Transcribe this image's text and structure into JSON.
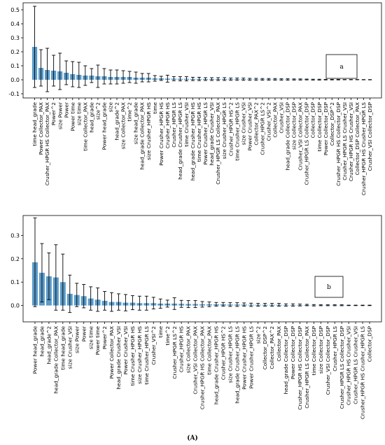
{
  "chart_data": [
    {
      "type": "bar",
      "annotation": "a",
      "color": "#5a9ac8",
      "error_color": "#000000",
      "ylim": [
        -0.13,
        0.55
      ],
      "yticks": [
        -0.1,
        {
          "value": 0,
          "label": "0.0"
        },
        0.1,
        0.2,
        0.3,
        0.4,
        0.5
      ],
      "categories": [
        "time head_grade",
        "Power Collector_PAX",
        "Crusher_HPGR HS Collector_PAX",
        "Power^2",
        "size Power",
        "Power",
        "Power time",
        "size time",
        "time Collector_PAX",
        "head_grade",
        "size^2",
        "Power head_grade",
        "size",
        "head_grade^2",
        "size Collector_PAX",
        "time^2",
        "size head_grade",
        "head_grade Collector_PAX",
        "size Crusher_HPGR HS",
        "time",
        "Power Crusher_HPGR HS",
        "Crusher_HPGR HS",
        "Crusher_HPGR LS",
        "head_grade Crusher_HPGR LS",
        "time Crusher_VSI",
        "head_grade Crusher_HPGR HS",
        "time Crusher_HPGR HS",
        "Power Crusher_HPGR LS",
        "head_grade Crusher_VSI",
        "Crusher_HPGR LS Collector_PAX",
        "size Crusher_HPGR LS",
        "Crusher_HPGR HS^2",
        "time Crusher_HPGR LS",
        "size Crusher_VSI",
        "Power Crusher_VSI",
        "Collector_PAX^2",
        "Crusher_HPGR LS^2",
        "Crusher_VSI^2",
        "Collector_PAX",
        "Crusher_VSI",
        "head_grade Collector_DSP",
        "size Collector_DSP",
        "Crusher_VSI Collector_PAX",
        "Crusher_HPGR LS Collector_DSP",
        "Collector_DSP",
        "time Collector_DSP",
        "Power Collector_DSP",
        "Collector_DSP^2",
        "Crusher_HPGR HS Collector_DSP",
        "Crusher_HPGR LS Crusher_VSI",
        "Crusher_HPGR HS Crusher_VSI",
        "Collector_DSP Collector_PAX",
        "Crusher_HPGR HS Crusher_HPGR LS",
        "Crusher_VSI Collector_DSP"
      ],
      "values": [
        0.235,
        0.085,
        0.07,
        0.065,
        0.06,
        0.05,
        0.04,
        0.035,
        0.03,
        0.03,
        0.025,
        0.025,
        0.02,
        0.02,
        0.02,
        0.02,
        0.015,
        0.015,
        0.015,
        0.01,
        0.01,
        0.008,
        0.008,
        0.007,
        0.007,
        0.006,
        0.006,
        0.005,
        0.005,
        0.005,
        0.005,
        0.004,
        0.004,
        0.004,
        0.003,
        0.003,
        0.003,
        0.003,
        0.003,
        0.002,
        0.002,
        0.002,
        0.002,
        0.002,
        0.001,
        0.001,
        0.001,
        0.001,
        0.001,
        0.001,
        0.001,
        0.001,
        0.0005,
        0.0005
      ],
      "errors": [
        0.29,
        0.13,
        0.155,
        0.11,
        0.13,
        0.085,
        0.09,
        0.09,
        0.07,
        0.05,
        0.08,
        0.055,
        0.05,
        0.05,
        0.045,
        0.04,
        0.04,
        0.03,
        0.03,
        0.02,
        0.015,
        0.025,
        0.015,
        0.015,
        0.015,
        0.012,
        0.012,
        0.01,
        0.01,
        0.01,
        0.01,
        0.008,
        0.008,
        0.008,
        0.007,
        0.007,
        0.006,
        0.006,
        0.006,
        0.005,
        0.005,
        0.004,
        0.004,
        0.003,
        0.003,
        0.003,
        0.002,
        0.002,
        0.002,
        0.001,
        0.001,
        0.001,
        0.001,
        0.001
      ]
    },
    {
      "type": "bar",
      "annotation": "b",
      "color": "#5a9ac8",
      "error_color": "#000000",
      "ylim": [
        -0.07,
        0.385
      ],
      "yticks": [
        {
          "value": 0,
          "label": "0.0"
        },
        0.1,
        0.2,
        0.3
      ],
      "categories": [
        "Power head_grade",
        "head_grade",
        "head_grade^2",
        "head_grade Collector_PAX",
        "time head_grade",
        "size Crusher_VSI",
        "size Power",
        "Power",
        "size time",
        "Power time",
        "Power^2",
        "Power Collector_PAX",
        "head_grade Crusher_VSI",
        "Power Crusher_VSI",
        "time Crusher_HPGR HS",
        "size Crusher_HPGR HS",
        "time Crusher_HPGR LS",
        "Crusher_VSI^2",
        "time",
        "time^2",
        "Crusher_HPGR LS^2",
        "Crusher_HPGR HS",
        "size Collector_PAX",
        "Crusher_VSI Collector_PAX",
        "Crusher_HPGR HS Collector_PAX",
        "time Collector_PAX",
        "head_grade Crusher_HPGR HS",
        "Crusher_HPGR HS^2",
        "size Crusher_HPGR LS",
        "head_grade Crusher_HPGR LS",
        "Power Crusher_HPGR HS",
        "Power Crusher_HPGR LS",
        "size^2",
        "Collector_DSP^2",
        "Collector_PAX^2",
        "Collector_PAX",
        "head_grade Collector_DSP",
        "Power Collector_DSP",
        "Crusher_HPGR HS Collector_DSP",
        "Crusher_HPGR LS Collector_PAX",
        "time Collector_DSP",
        "size Collector_DSP",
        "Crusher_VSI Collector_DSP",
        "Crusher_HPGR LS",
        "Crusher_HPGR LS Collector_DSP",
        "Crusher_HPGR HS Crusher_VSI",
        "Crusher_HPGR LS Crusher_VSI",
        "Crusher_HPGR HS Crusher_HPGR LS",
        "Collector_DSP"
      ],
      "values": [
        0.185,
        0.14,
        0.125,
        0.12,
        0.1,
        0.05,
        0.045,
        0.04,
        0.03,
        0.025,
        0.02,
        0.015,
        0.015,
        0.012,
        0.012,
        0.01,
        0.01,
        0.01,
        0.008,
        0.008,
        0.008,
        0.007,
        0.006,
        0.006,
        0.005,
        0.005,
        0.005,
        0.005,
        0.004,
        0.004,
        0.004,
        0.003,
        0.003,
        0.003,
        0.003,
        0.003,
        0.002,
        0.002,
        0.002,
        0.002,
        0.001,
        0.001,
        0.001,
        0.001,
        0.001,
        0.0005,
        0.0005,
        0.0005,
        0.0005
      ],
      "errors": [
        0.19,
        0.125,
        0.1,
        0.14,
        0.12,
        0.08,
        0.05,
        0.05,
        0.05,
        0.05,
        0.04,
        0.04,
        0.035,
        0.035,
        0.03,
        0.03,
        0.03,
        0.025,
        0.02,
        0.015,
        0.025,
        0.015,
        0.015,
        0.015,
        0.012,
        0.01,
        0.008,
        0.008,
        0.008,
        0.008,
        0.007,
        0.007,
        0.006,
        0.006,
        0.006,
        0.006,
        0.005,
        0.005,
        0.004,
        0.003,
        0.003,
        0.002,
        0.002,
        0.002,
        0.002,
        0.001,
        0.001,
        0.001,
        0.001
      ]
    }
  ],
  "caption": "(A)"
}
